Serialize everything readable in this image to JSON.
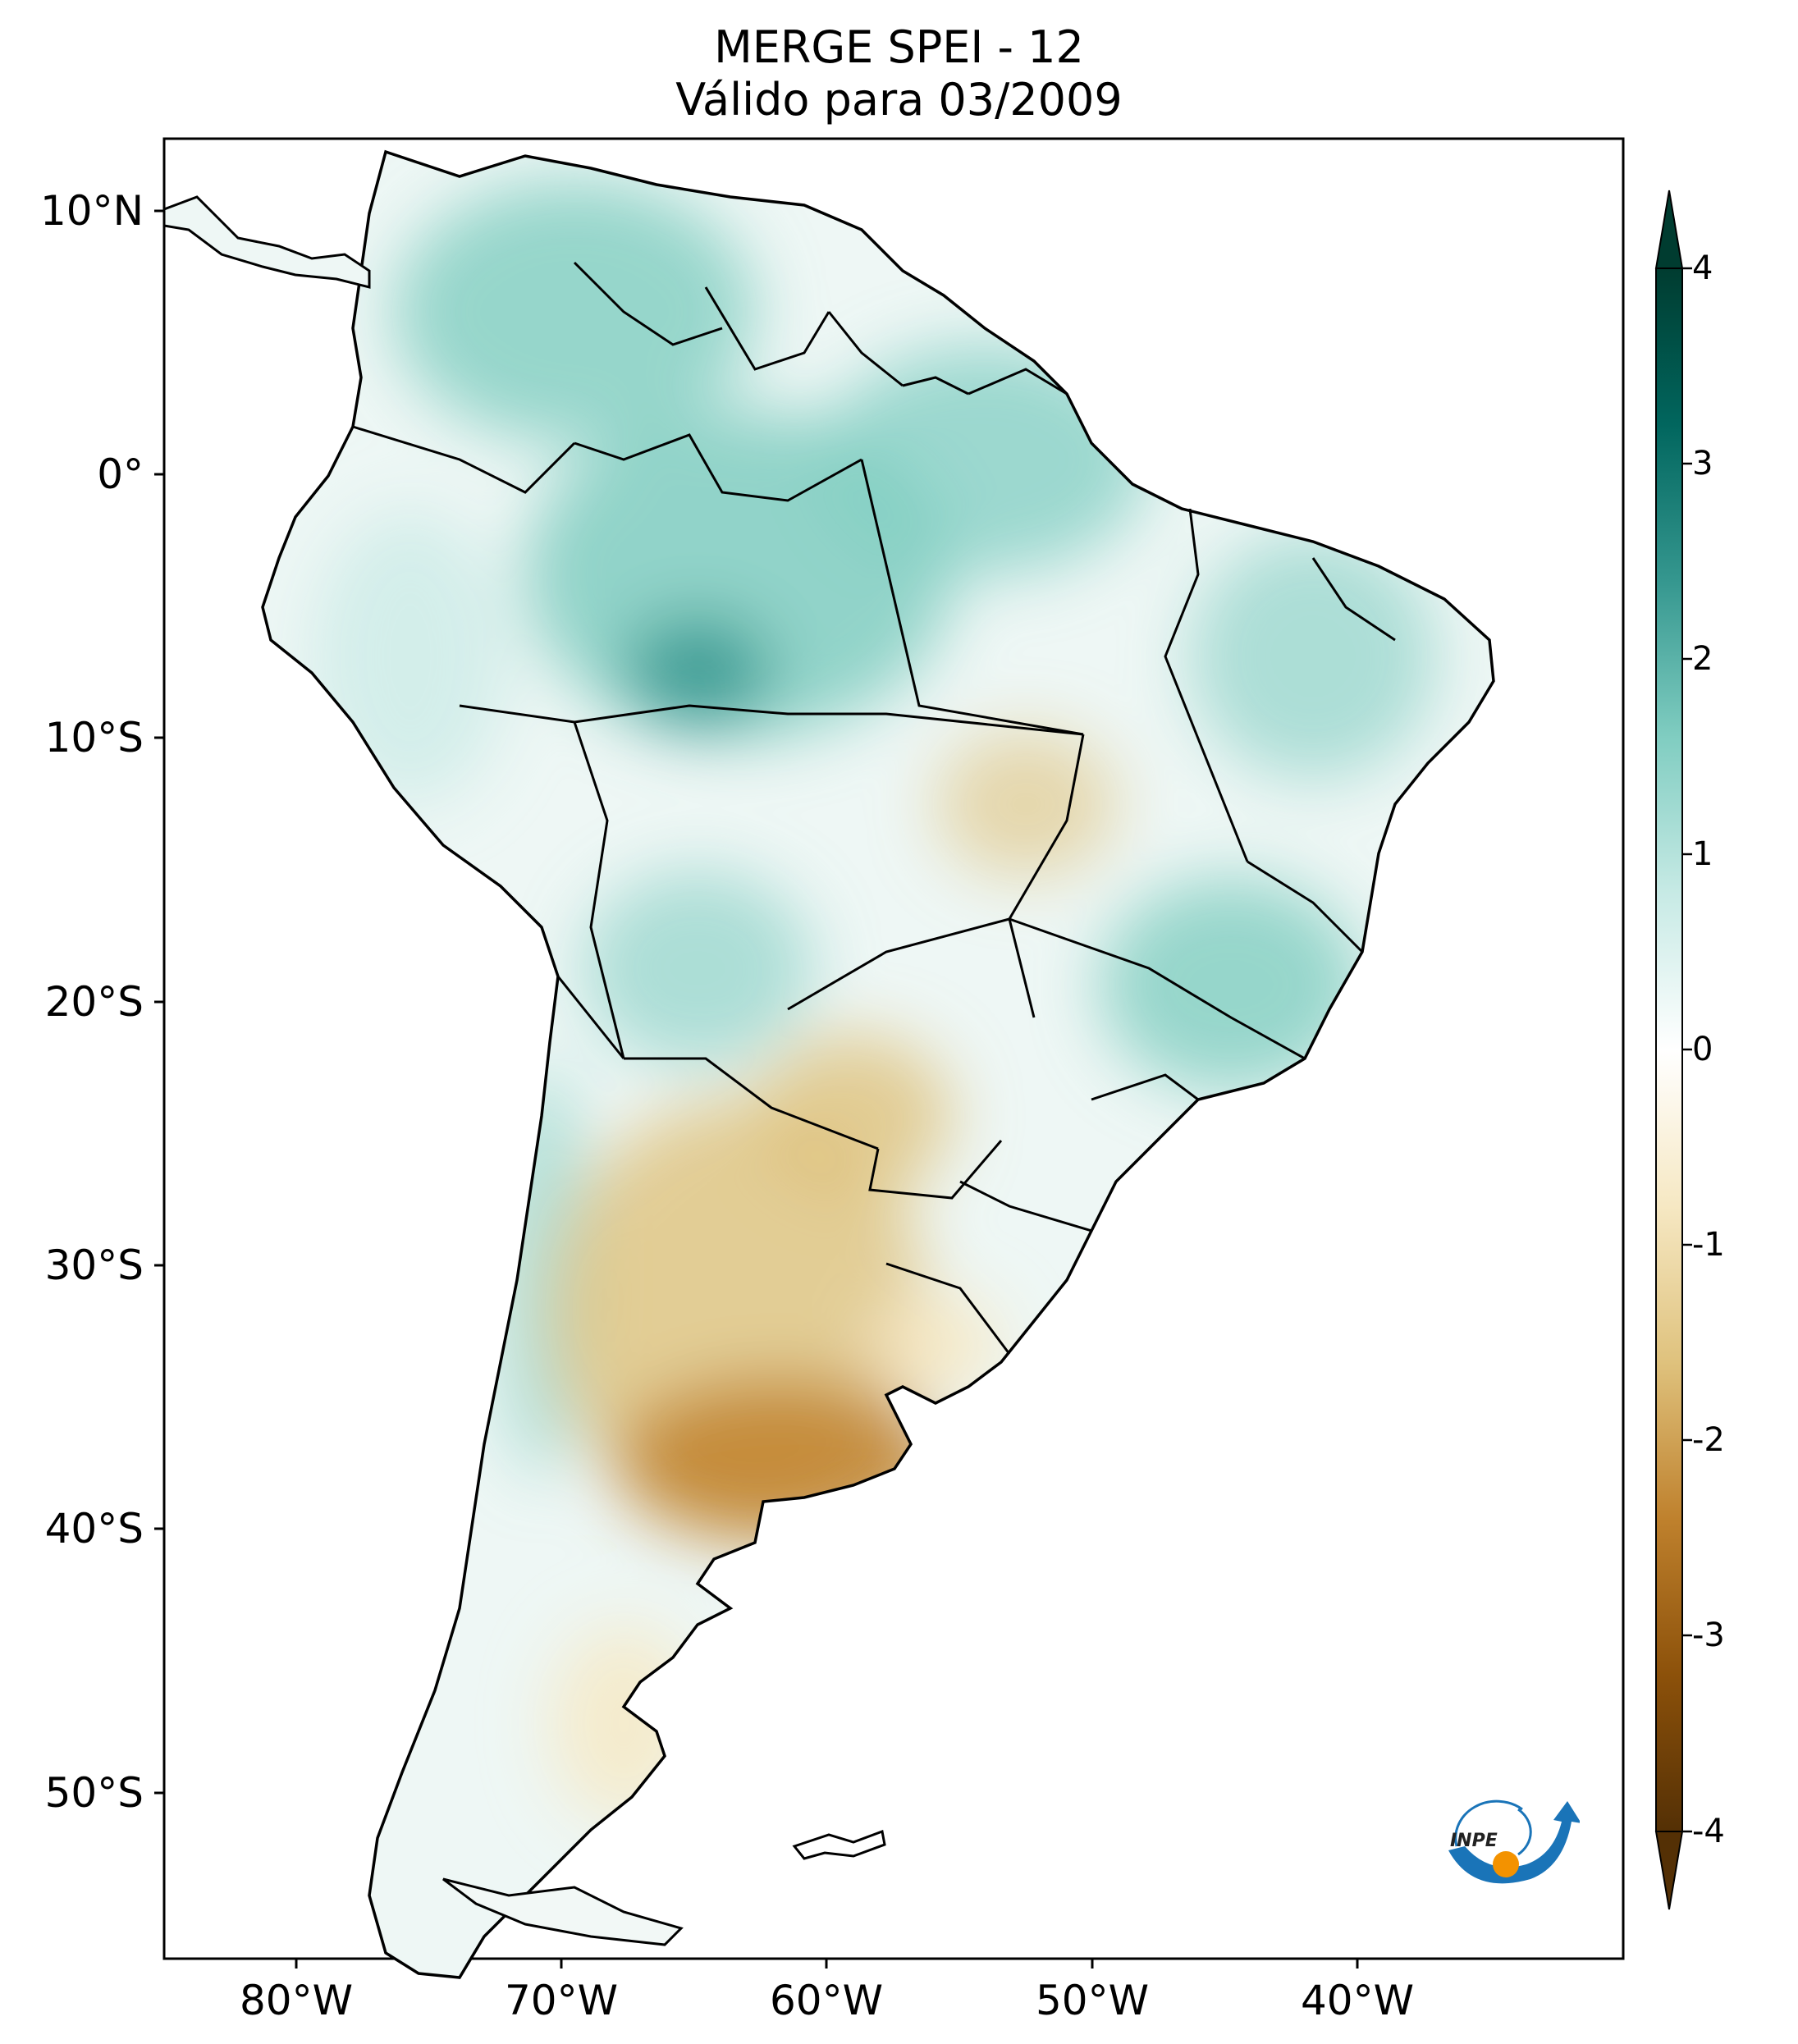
{
  "title": {
    "line1": "MERGE   SPEI - 12",
    "line2": "Válido para 03/2009"
  },
  "map": {
    "lat_ticks": [
      {
        "value": 10,
        "label": "10°N"
      },
      {
        "value": 0,
        "label": "0°"
      },
      {
        "value": -10,
        "label": "10°S"
      },
      {
        "value": -20,
        "label": "20°S"
      },
      {
        "value": -30,
        "label": "30°S"
      },
      {
        "value": -40,
        "label": "40°S"
      },
      {
        "value": -50,
        "label": "50°S"
      }
    ],
    "lon_ticks": [
      {
        "value": -80,
        "label": "80°W"
      },
      {
        "value": -70,
        "label": "70°W"
      },
      {
        "value": -60,
        "label": "60°W"
      },
      {
        "value": -50,
        "label": "50°W"
      },
      {
        "value": -40,
        "label": "40°W"
      }
    ],
    "lon_range": [
      -85,
      -30
    ],
    "lat_range": [
      -56,
      13
    ]
  },
  "colorbar": {
    "ticks": [
      {
        "value": 4,
        "label": "4"
      },
      {
        "value": 3,
        "label": "3"
      },
      {
        "value": 2,
        "label": "2"
      },
      {
        "value": 1,
        "label": "1"
      },
      {
        "value": 0,
        "label": "0"
      },
      {
        "value": -1,
        "label": "-1"
      },
      {
        "value": -2,
        "label": "-2"
      },
      {
        "value": -3,
        "label": "-3"
      },
      {
        "value": -4,
        "label": "-4"
      }
    ],
    "range": [
      -4,
      4
    ],
    "extend": "both",
    "colormap": [
      "#543005",
      "#8c510a",
      "#bf812d",
      "#dfc27d",
      "#f6e8c3",
      "#ffffff",
      "#c7eae5",
      "#80cdc1",
      "#35978f",
      "#01665e",
      "#003c30"
    ]
  },
  "logo": {
    "text": "INPE",
    "colors": {
      "blue": "#1a74b8",
      "orange": "#f39200"
    }
  },
  "colors": {
    "border": "#000000",
    "wet": "#80cdc1",
    "dry": "#bf812d"
  }
}
